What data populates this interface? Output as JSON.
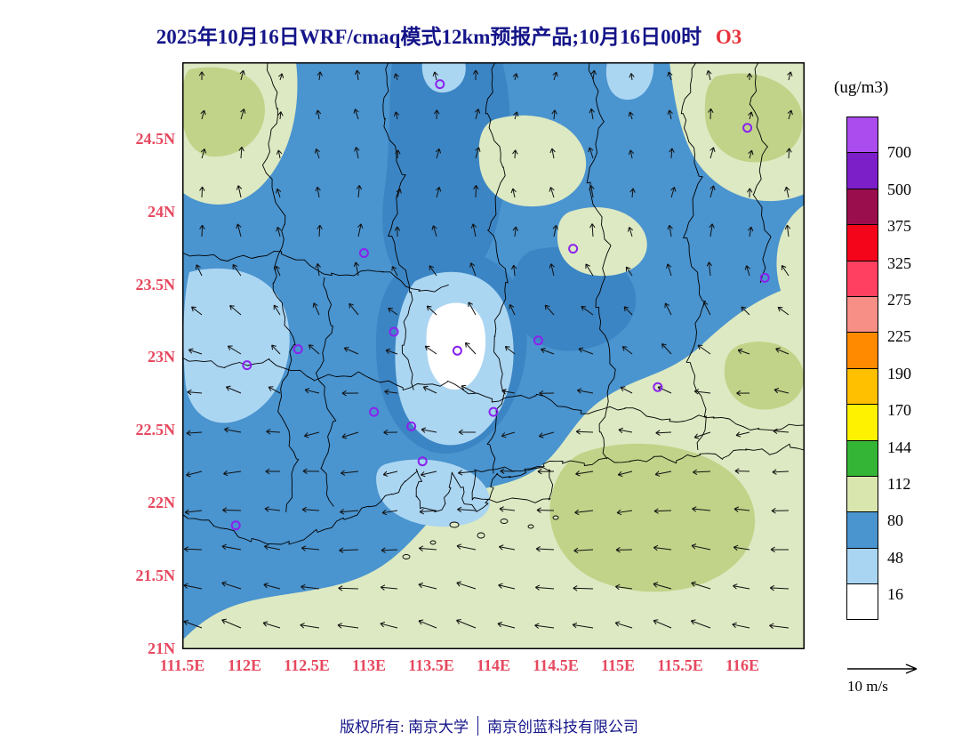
{
  "title": {
    "main": "2025年10月16日WRF/cmaq模式12km预报产品;10月16日00时",
    "species": "O3"
  },
  "colors": {
    "title": "#15158a",
    "species": "#e8333c",
    "axis_label": "#e6495f",
    "map_frame": "#000000",
    "station_marker": "#8a22ee",
    "sea_low_fill": "#dde9c2"
  },
  "axes": {
    "lat_ticks": [
      "24.5N",
      "24N",
      "23.5N",
      "23N",
      "22.5N",
      "22N",
      "21.5N",
      "21N"
    ],
    "lon_ticks": [
      "111.5E",
      "112E",
      "112.5E",
      "113E",
      "113.5E",
      "114E",
      "114.5E",
      "115E",
      "115.5E",
      "116E"
    ]
  },
  "colorbar": {
    "units_label": "(ug/m3)",
    "labels": [
      "700",
      "500",
      "375",
      "325",
      "275",
      "225",
      "190",
      "170",
      "144",
      "112",
      "80",
      "48",
      "16"
    ],
    "colors_top_to_bottom": [
      "#ab4cee",
      "#7d1fc9",
      "#9b0e4e",
      "#f5051a",
      "#ff4060",
      "#f88f86",
      "#ff8a00",
      "#ffc000",
      "#fff200",
      "#35b535",
      "#d9e6ae",
      "#4a94cf",
      "#a9d5f2",
      "#ffffff"
    ]
  },
  "wind_legend": {
    "label": "10 m/s"
  },
  "footer": {
    "copyright_left": "版权所有: 南京大学",
    "copyright_right": "南京创蓝科技有限公司"
  },
  "chart_data": {
    "type": "heatmap",
    "subtype": "filled-contour-map",
    "variable": "O3",
    "units": "ug/m3",
    "model": "WRF/CMAQ 12km forecast",
    "valid_time_label": "2025-10-16 00时",
    "lon_range": [
      111.5,
      116.5
    ],
    "lat_range": [
      21.0,
      25.03
    ],
    "contour_levels": [
      16,
      48,
      80,
      112,
      144,
      170,
      190,
      225,
      275,
      325,
      375,
      500,
      700
    ],
    "field_summary": {
      "minimum_pocket": "O3 < 16 ug/m3 near 113.5E, 23.2N (Pearl River Delta core)",
      "dominant_ranges": [
        "48-80 ug/m3 over northern and western inland areas",
        "16-48 ug/m3 ring around the delta minimum",
        "80-112 ug/m3 over southeastern coastal waters and northeast corner",
        "112-144 ug/m3 patches offshore to the southeast"
      ]
    },
    "wind": {
      "reference": "10 m/s",
      "pattern": "weak northerly flow inland turning to stronger east-to-west flow over southern coastal waters"
    },
    "stations": [
      {
        "lon": 113.57,
        "lat": 24.88
      },
      {
        "lon": 116.04,
        "lat": 24.58
      },
      {
        "lon": 112.96,
        "lat": 23.72
      },
      {
        "lon": 114.64,
        "lat": 23.75
      },
      {
        "lon": 116.18,
        "lat": 23.55
      },
      {
        "lon": 113.2,
        "lat": 23.18
      },
      {
        "lon": 112.43,
        "lat": 23.06
      },
      {
        "lon": 112.02,
        "lat": 22.95
      },
      {
        "lon": 114.36,
        "lat": 23.12
      },
      {
        "lon": 113.71,
        "lat": 23.05
      },
      {
        "lon": 115.32,
        "lat": 22.8
      },
      {
        "lon": 113.04,
        "lat": 22.63
      },
      {
        "lon": 113.34,
        "lat": 22.53
      },
      {
        "lon": 114.0,
        "lat": 22.63
      },
      {
        "lon": 113.43,
        "lat": 22.29
      },
      {
        "lon": 111.93,
        "lat": 21.85
      }
    ]
  }
}
